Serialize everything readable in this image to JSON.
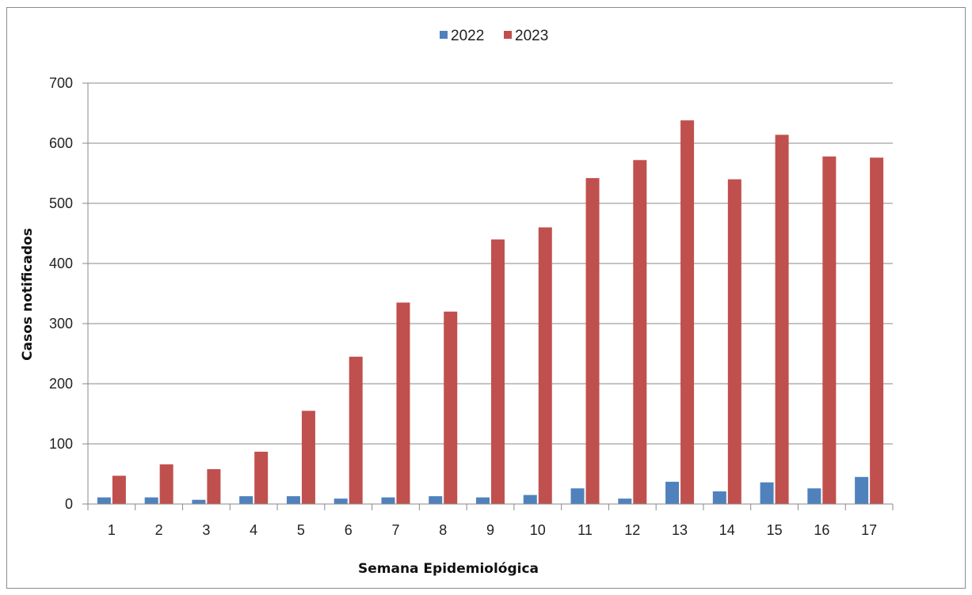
{
  "chart_data": {
    "type": "bar",
    "categories": [
      "1",
      "2",
      "3",
      "4",
      "5",
      "6",
      "7",
      "8",
      "9",
      "10",
      "11",
      "12",
      "13",
      "14",
      "15",
      "16",
      "17"
    ],
    "series": [
      {
        "name": "2022",
        "color": "#4f81bd",
        "values": [
          11,
          11,
          7,
          13,
          13,
          9,
          11,
          13,
          11,
          15,
          26,
          9,
          37,
          21,
          36,
          26,
          45
        ]
      },
      {
        "name": "2023",
        "color": "#c0504d",
        "values": [
          47,
          66,
          58,
          87,
          155,
          245,
          335,
          320,
          440,
          460,
          542,
          572,
          638,
          540,
          614,
          578,
          576
        ]
      }
    ],
    "xlabel": "Semana Epidemiológica",
    "ylabel": "Casos notificados",
    "ylim": [
      0,
      700
    ],
    "yticks": [
      0,
      100,
      200,
      300,
      400,
      500,
      600,
      700
    ],
    "grid": true,
    "legend": "top-center"
  }
}
